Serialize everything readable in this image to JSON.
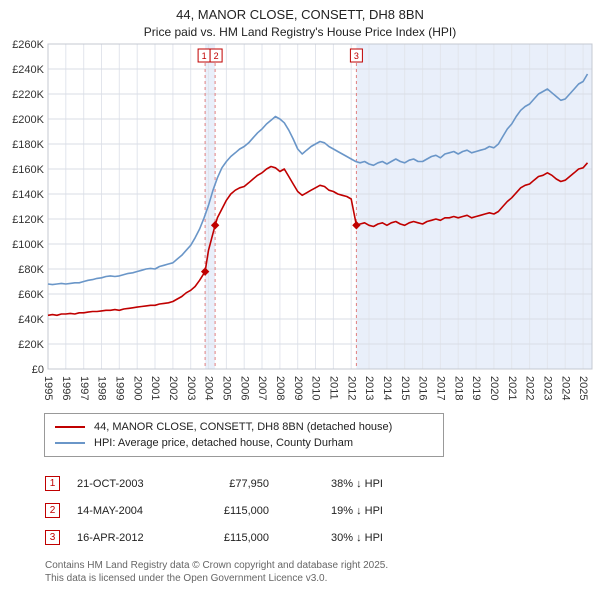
{
  "colors": {
    "property_line": "#c00000",
    "hpi_line": "#6a96c8",
    "shade": "#e9effa",
    "sale_dash": "#e08080",
    "grid": "#d9dde6"
  },
  "legend": {
    "series1": "44, MANOR CLOSE, CONSETT, DH8 8BN (detached house)",
    "series2": "HPI: Average price, detached house, County Durham"
  },
  "transactions": [
    {
      "num": "1",
      "date": "21-OCT-2003",
      "price": "£77,950",
      "hpi": "38% ↓ HPI"
    },
    {
      "num": "2",
      "date": "14-MAY-2004",
      "price": "£115,000",
      "hpi": "19% ↓ HPI"
    },
    {
      "num": "3",
      "date": "16-APR-2012",
      "price": "£115,000",
      "hpi": "30% ↓ HPI"
    }
  ],
  "footer": {
    "line1": "Contains HM Land Registry data © Crown copyright and database right 2025.",
    "line2": "This data is licensed under the Open Government Licence v3.0."
  },
  "chart_data": {
    "type": "line",
    "title": "44, MANOR CLOSE, CONSETT, DH8 8BN",
    "subtitle": "Price paid vs. HM Land Registry's House Price Index (HPI)",
    "x_range": [
      1995,
      2025.5
    ],
    "ylim": [
      0,
      260000
    ],
    "y_tick_step": 20000,
    "y_tick_labels": [
      "£0",
      "£20K",
      "£40K",
      "£60K",
      "£80K",
      "£100K",
      "£120K",
      "£140K",
      "£160K",
      "£180K",
      "£200K",
      "£220K",
      "£240K",
      "£260K"
    ],
    "x_ticks": [
      1995,
      1996,
      1997,
      1998,
      1999,
      2000,
      2001,
      2002,
      2003,
      2004,
      2005,
      2006,
      2007,
      2008,
      2009,
      2010,
      2011,
      2012,
      2013,
      2014,
      2015,
      2016,
      2017,
      2018,
      2019,
      2020,
      2021,
      2022,
      2023,
      2024,
      2025
    ],
    "shaded_regions": [
      [
        2003.81,
        2004.37
      ],
      [
        2012.29,
        2025.5
      ]
    ],
    "sales": [
      {
        "x": 2003.81,
        "y": 77950,
        "label": "1",
        "box_offset": -1
      },
      {
        "x": 2004.37,
        "y": 115000,
        "label": "2",
        "box_offset": 1
      },
      {
        "x": 2012.29,
        "y": 115000,
        "label": "3",
        "box_offset": 0
      }
    ],
    "series": [
      {
        "name": "price-paid",
        "label": "44, MANOR CLOSE, CONSETT, DH8 8BN (detached house)",
        "color": "#c00000",
        "points": [
          [
            1995.0,
            43000
          ],
          [
            1995.25,
            43500
          ],
          [
            1995.5,
            43000
          ],
          [
            1995.75,
            44000
          ],
          [
            1996.0,
            44000
          ],
          [
            1996.25,
            44500
          ],
          [
            1996.5,
            44000
          ],
          [
            1996.75,
            45000
          ],
          [
            1997.0,
            45000
          ],
          [
            1997.25,
            45500
          ],
          [
            1997.5,
            46000
          ],
          [
            1997.75,
            46000
          ],
          [
            1998.0,
            46500
          ],
          [
            1998.25,
            47000
          ],
          [
            1998.5,
            47000
          ],
          [
            1998.75,
            47500
          ],
          [
            1999.0,
            47000
          ],
          [
            1999.25,
            48000
          ],
          [
            1999.5,
            48500
          ],
          [
            1999.75,
            49000
          ],
          [
            2000.0,
            49500
          ],
          [
            2000.25,
            50000
          ],
          [
            2000.5,
            50500
          ],
          [
            2000.75,
            51000
          ],
          [
            2001.0,
            51000
          ],
          [
            2001.25,
            52000
          ],
          [
            2001.5,
            52500
          ],
          [
            2001.75,
            53000
          ],
          [
            2002.0,
            54000
          ],
          [
            2002.25,
            56000
          ],
          [
            2002.5,
            58000
          ],
          [
            2002.75,
            61000
          ],
          [
            2003.0,
            63000
          ],
          [
            2003.25,
            66000
          ],
          [
            2003.5,
            71000
          ],
          [
            2003.81,
            77950
          ],
          [
            2004.0,
            95000
          ],
          [
            2004.37,
            115000
          ],
          [
            2004.5,
            121000
          ],
          [
            2004.75,
            128000
          ],
          [
            2005.0,
            135000
          ],
          [
            2005.25,
            140000
          ],
          [
            2005.5,
            143000
          ],
          [
            2005.75,
            145000
          ],
          [
            2006.0,
            146000
          ],
          [
            2006.25,
            149000
          ],
          [
            2006.5,
            152000
          ],
          [
            2006.75,
            155000
          ],
          [
            2007.0,
            157000
          ],
          [
            2007.25,
            160000
          ],
          [
            2007.5,
            162000
          ],
          [
            2007.75,
            161000
          ],
          [
            2008.0,
            158000
          ],
          [
            2008.25,
            160000
          ],
          [
            2008.5,
            154000
          ],
          [
            2008.75,
            148000
          ],
          [
            2009.0,
            142000
          ],
          [
            2009.25,
            139000
          ],
          [
            2009.5,
            141000
          ],
          [
            2009.75,
            143000
          ],
          [
            2010.0,
            145000
          ],
          [
            2010.25,
            147000
          ],
          [
            2010.5,
            146000
          ],
          [
            2010.75,
            143000
          ],
          [
            2011.0,
            142000
          ],
          [
            2011.25,
            140000
          ],
          [
            2011.5,
            139000
          ],
          [
            2011.75,
            138000
          ],
          [
            2012.0,
            136000
          ],
          [
            2012.29,
            115000
          ],
          [
            2012.5,
            116000
          ],
          [
            2012.75,
            117000
          ],
          [
            2013.0,
            115000
          ],
          [
            2013.25,
            114000
          ],
          [
            2013.5,
            116000
          ],
          [
            2013.75,
            117000
          ],
          [
            2014.0,
            115000
          ],
          [
            2014.25,
            117000
          ],
          [
            2014.5,
            118000
          ],
          [
            2014.75,
            116000
          ],
          [
            2015.0,
            115000
          ],
          [
            2015.25,
            117000
          ],
          [
            2015.5,
            118000
          ],
          [
            2015.75,
            117000
          ],
          [
            2016.0,
            116000
          ],
          [
            2016.25,
            118000
          ],
          [
            2016.5,
            119000
          ],
          [
            2016.75,
            120000
          ],
          [
            2017.0,
            119000
          ],
          [
            2017.25,
            121000
          ],
          [
            2017.5,
            121000
          ],
          [
            2017.75,
            122000
          ],
          [
            2018.0,
            121000
          ],
          [
            2018.25,
            122000
          ],
          [
            2018.5,
            123000
          ],
          [
            2018.75,
            121000
          ],
          [
            2019.0,
            122000
          ],
          [
            2019.25,
            123000
          ],
          [
            2019.5,
            124000
          ],
          [
            2019.75,
            125000
          ],
          [
            2020.0,
            124000
          ],
          [
            2020.25,
            126000
          ],
          [
            2020.5,
            130000
          ],
          [
            2020.75,
            134000
          ],
          [
            2021.0,
            137000
          ],
          [
            2021.25,
            141000
          ],
          [
            2021.5,
            145000
          ],
          [
            2021.75,
            147000
          ],
          [
            2022.0,
            148000
          ],
          [
            2022.25,
            151000
          ],
          [
            2022.5,
            154000
          ],
          [
            2022.75,
            155000
          ],
          [
            2023.0,
            157000
          ],
          [
            2023.25,
            155000
          ],
          [
            2023.5,
            152000
          ],
          [
            2023.75,
            150000
          ],
          [
            2024.0,
            151000
          ],
          [
            2024.25,
            154000
          ],
          [
            2024.5,
            157000
          ],
          [
            2024.75,
            160000
          ],
          [
            2025.0,
            161000
          ],
          [
            2025.25,
            165000
          ]
        ]
      },
      {
        "name": "hpi",
        "label": "HPI: Average price, detached house, County Durham",
        "color": "#6a96c8",
        "points": [
          [
            1995.0,
            68000
          ],
          [
            1995.25,
            67500
          ],
          [
            1995.5,
            68000
          ],
          [
            1995.75,
            68500
          ],
          [
            1996.0,
            68000
          ],
          [
            1996.25,
            68500
          ],
          [
            1996.5,
            69000
          ],
          [
            1996.75,
            69000
          ],
          [
            1997.0,
            70000
          ],
          [
            1997.25,
            71000
          ],
          [
            1997.5,
            71500
          ],
          [
            1997.75,
            72500
          ],
          [
            1998.0,
            73000
          ],
          [
            1998.25,
            74000
          ],
          [
            1998.5,
            74500
          ],
          [
            1998.75,
            74000
          ],
          [
            1999.0,
            74500
          ],
          [
            1999.25,
            75500
          ],
          [
            1999.5,
            76500
          ],
          [
            1999.75,
            77000
          ],
          [
            2000.0,
            78000
          ],
          [
            2000.25,
            79000
          ],
          [
            2000.5,
            80000
          ],
          [
            2000.75,
            80500
          ],
          [
            2001.0,
            80000
          ],
          [
            2001.25,
            82000
          ],
          [
            2001.5,
            83000
          ],
          [
            2001.75,
            84000
          ],
          [
            2002.0,
            85000
          ],
          [
            2002.25,
            88000
          ],
          [
            2002.5,
            91000
          ],
          [
            2002.75,
            95000
          ],
          [
            2003.0,
            99000
          ],
          [
            2003.25,
            105000
          ],
          [
            2003.5,
            112000
          ],
          [
            2003.75,
            121000
          ],
          [
            2004.0,
            131000
          ],
          [
            2004.25,
            143000
          ],
          [
            2004.5,
            153000
          ],
          [
            2004.75,
            161000
          ],
          [
            2005.0,
            166000
          ],
          [
            2005.25,
            170000
          ],
          [
            2005.5,
            173000
          ],
          [
            2005.75,
            176000
          ],
          [
            2006.0,
            178000
          ],
          [
            2006.25,
            181000
          ],
          [
            2006.5,
            185000
          ],
          [
            2006.75,
            189000
          ],
          [
            2007.0,
            192000
          ],
          [
            2007.25,
            196000
          ],
          [
            2007.5,
            199000
          ],
          [
            2007.75,
            202000
          ],
          [
            2008.0,
            200000
          ],
          [
            2008.25,
            197000
          ],
          [
            2008.5,
            191000
          ],
          [
            2008.75,
            184000
          ],
          [
            2009.0,
            176000
          ],
          [
            2009.25,
            172000
          ],
          [
            2009.5,
            175000
          ],
          [
            2009.75,
            178000
          ],
          [
            2010.0,
            180000
          ],
          [
            2010.25,
            182000
          ],
          [
            2010.5,
            181000
          ],
          [
            2010.75,
            178000
          ],
          [
            2011.0,
            176000
          ],
          [
            2011.25,
            174000
          ],
          [
            2011.5,
            172000
          ],
          [
            2011.75,
            170000
          ],
          [
            2012.0,
            168000
          ],
          [
            2012.25,
            166000
          ],
          [
            2012.5,
            165000
          ],
          [
            2012.75,
            166000
          ],
          [
            2013.0,
            164000
          ],
          [
            2013.25,
            163000
          ],
          [
            2013.5,
            165000
          ],
          [
            2013.75,
            166000
          ],
          [
            2014.0,
            164000
          ],
          [
            2014.25,
            166000
          ],
          [
            2014.5,
            168000
          ],
          [
            2014.75,
            166000
          ],
          [
            2015.0,
            165000
          ],
          [
            2015.25,
            167000
          ],
          [
            2015.5,
            168000
          ],
          [
            2015.75,
            166000
          ],
          [
            2016.0,
            166000
          ],
          [
            2016.25,
            168000
          ],
          [
            2016.5,
            170000
          ],
          [
            2016.75,
            171000
          ],
          [
            2017.0,
            169000
          ],
          [
            2017.25,
            172000
          ],
          [
            2017.5,
            173000
          ],
          [
            2017.75,
            174000
          ],
          [
            2018.0,
            172000
          ],
          [
            2018.25,
            174000
          ],
          [
            2018.5,
            175000
          ],
          [
            2018.75,
            173000
          ],
          [
            2019.0,
            174000
          ],
          [
            2019.25,
            175000
          ],
          [
            2019.5,
            176000
          ],
          [
            2019.75,
            178000
          ],
          [
            2020.0,
            177000
          ],
          [
            2020.25,
            180000
          ],
          [
            2020.5,
            186000
          ],
          [
            2020.75,
            192000
          ],
          [
            2021.0,
            196000
          ],
          [
            2021.25,
            202000
          ],
          [
            2021.5,
            207000
          ],
          [
            2021.75,
            210000
          ],
          [
            2022.0,
            212000
          ],
          [
            2022.25,
            216000
          ],
          [
            2022.5,
            220000
          ],
          [
            2022.75,
            222000
          ],
          [
            2023.0,
            224000
          ],
          [
            2023.25,
            221000
          ],
          [
            2023.5,
            218000
          ],
          [
            2023.75,
            215000
          ],
          [
            2024.0,
            216000
          ],
          [
            2024.25,
            220000
          ],
          [
            2024.5,
            224000
          ],
          [
            2024.75,
            228000
          ],
          [
            2025.0,
            230000
          ],
          [
            2025.25,
            236000
          ]
        ]
      }
    ]
  }
}
